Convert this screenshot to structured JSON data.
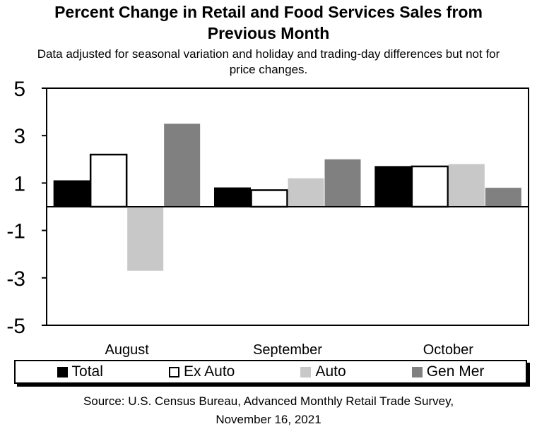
{
  "title_line1": "Percent Change in Retail and Food Services Sales from",
  "title_line2": "Previous Month",
  "subtitle_line1": "Data adjusted for seasonal variation and holiday and trading-day differences but not for",
  "subtitle_line2": "price changes.",
  "source_line1": "Source: U.S. Census Bureau, Advanced Monthly Retail Trade Survey,",
  "source_line2": "November 16, 2021",
  "chart_data": {
    "type": "bar",
    "categories": [
      "August",
      "September",
      "October"
    ],
    "series": [
      {
        "name": "Total",
        "color": "#000000",
        "values": [
          1.1,
          0.8,
          1.7
        ]
      },
      {
        "name": "Ex Auto",
        "color": "#ffffff",
        "values": [
          2.2,
          0.7,
          1.7
        ]
      },
      {
        "name": "Auto",
        "color": "#c8c8c8",
        "values": [
          -2.7,
          1.2,
          1.8
        ]
      },
      {
        "name": "Gen Mer",
        "color": "#808080",
        "values": [
          3.5,
          2.0,
          0.8
        ]
      }
    ],
    "yticks": [
      5,
      3,
      1,
      -1,
      -3,
      -5
    ],
    "ylim": [
      -5,
      5
    ],
    "legend_position": "bottom",
    "grid": false
  }
}
